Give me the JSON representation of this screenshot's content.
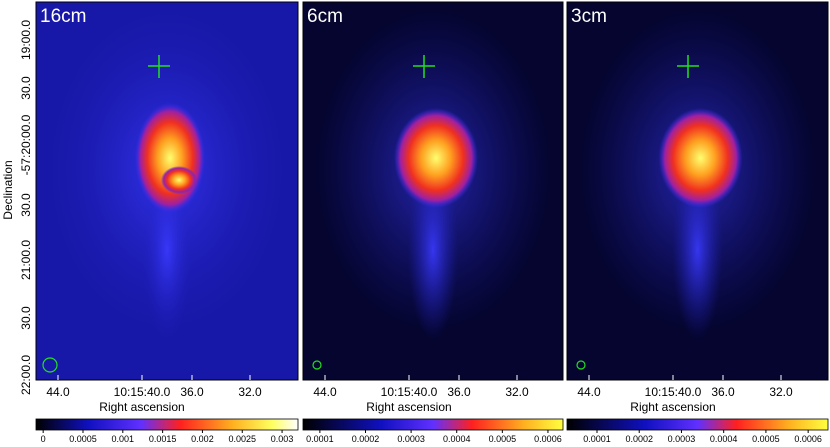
{
  "ylabel": "Declination",
  "yticks": [
    "19:00.0",
    "30.0",
    "-57:20:00.0",
    "30.0",
    "21:00.0",
    "30.0",
    "22:00.0"
  ],
  "panels": [
    {
      "label": "16cm",
      "xlabel": "Right ascension",
      "xticks": [
        "44.0",
        "10:15:40.0",
        "36.0",
        "32.0"
      ],
      "clim": [
        -9e-05,
        0.0032
      ],
      "cticks": [
        0,
        0.0005,
        0.001,
        0.0015,
        0.002,
        0.0025,
        0.003
      ]
    },
    {
      "label": "6cm",
      "xlabel": "Right ascension",
      "xticks": [
        "44.0",
        "10:15:40.0",
        "36.0",
        "32.0"
      ],
      "clim": [
        6.3e-05,
        0.000633
      ],
      "cticks": [
        0.0001,
        0.0002,
        0.0003,
        0.0004,
        0.0005,
        0.0006
      ]
    },
    {
      "label": "3cm",
      "xlabel": "Right ascension",
      "xticks": [
        "44.0",
        "10:15:40.0",
        "36.0",
        "32.0"
      ],
      "clim": [
        2.9e-05,
        0.000647
      ],
      "cticks": [
        0.0001,
        0.0002,
        0.0003,
        0.0004,
        0.0005,
        0.0006
      ]
    }
  ]
}
